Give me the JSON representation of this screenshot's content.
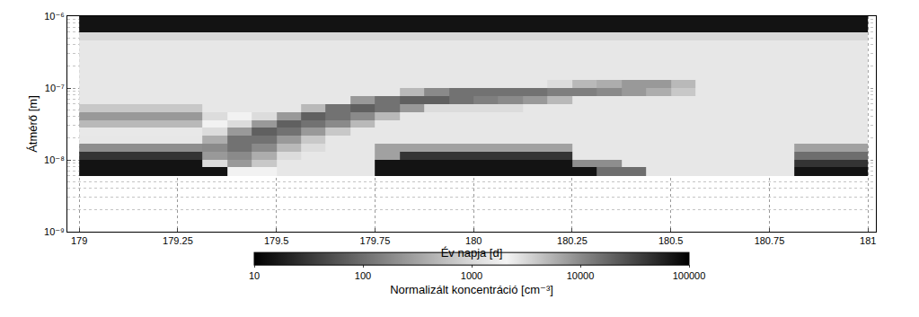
{
  "chart_data": {
    "type": "heatmap",
    "x_label": "Év napja [d]",
    "y_label": "Átmérő [m]",
    "log": "y",
    "grid": true,
    "xlim": [
      178.97,
      181.02
    ],
    "xticks": [
      179,
      179.25,
      179.5,
      179.75,
      180,
      180.25,
      180.5,
      180.75,
      181
    ],
    "ylim": [
      1e-09,
      1e-06
    ],
    "yticks": [
      {
        "value": 1e-09,
        "label": "10⁻⁹"
      },
      {
        "value": 1e-08,
        "label": "10⁻⁸"
      },
      {
        "value": 1e-07,
        "label": "10⁻⁷"
      },
      {
        "value": 1e-06,
        "label": "10⁻⁶"
      }
    ],
    "x": [
      179,
      179.0625,
      179.125,
      179.1875,
      179.25,
      179.3125,
      179.375,
      179.4375,
      179.5,
      179.5625,
      179.625,
      179.6875,
      179.75,
      179.8125,
      179.875,
      179.9375,
      180,
      180.0625,
      180.125,
      180.1875,
      180.25,
      180.3125,
      180.375,
      180.4375,
      180.5,
      180.5625,
      180.625,
      180.6875,
      180.75,
      180.8125,
      180.875,
      180.9375,
      181
    ],
    "y": [
      6e-09,
      8e-09,
      1e-08,
      1.3e-08,
      1.7e-08,
      2.2e-08,
      2.8e-08,
      3.6e-08,
      4.6e-08,
      6e-08,
      7.7e-08,
      1e-07,
      1.3e-07,
      1.7e-07,
      2.2e-07,
      2.8e-07,
      3.6e-07,
      4.6e-07,
      6e-07,
      1e-06
    ],
    "cells": [
      [
        15,
        15,
        15,
        15,
        15,
        15,
        2000,
        2000,
        1500,
        1500,
        1500,
        1500,
        15,
        15,
        15,
        15,
        15,
        15,
        15,
        15,
        15,
        100,
        100,
        1500,
        1500,
        1500,
        1500,
        1500,
        1500,
        15,
        15,
        15
      ],
      [
        15,
        15,
        15,
        15,
        15,
        3000,
        8000,
        4000,
        1500,
        1500,
        1500,
        1500,
        15,
        15,
        15,
        15,
        15,
        15,
        15,
        15,
        200,
        200,
        1500,
        1500,
        1500,
        1500,
        1500,
        1500,
        1500,
        30,
        30,
        30
      ],
      [
        30,
        30,
        30,
        30,
        30,
        8000,
        10000,
        6000,
        3000,
        1500,
        1500,
        1500,
        300,
        30,
        30,
        30,
        30,
        30,
        30,
        30,
        1500,
        1500,
        1500,
        1500,
        1500,
        1500,
        1500,
        1500,
        1500,
        100,
        100,
        100
      ],
      [
        200,
        200,
        200,
        200,
        200,
        10000,
        15000,
        10000,
        5000,
        3000,
        1500,
        1500,
        300,
        300,
        300,
        300,
        300,
        300,
        300,
        300,
        1500,
        1500,
        1500,
        1500,
        1500,
        1500,
        1500,
        1500,
        1500,
        300,
        300,
        300
      ],
      [
        1500,
        1500,
        1500,
        1500,
        1500,
        6000,
        15000,
        15000,
        8000,
        4000,
        1500,
        1500,
        1500,
        1500,
        1500,
        1500,
        1500,
        1500,
        1500,
        1500,
        1500,
        1500,
        1500,
        1500,
        1500,
        1500,
        1500,
        1500,
        1500,
        1500,
        1500,
        1500
      ],
      [
        2500,
        2500,
        2500,
        2500,
        2500,
        3000,
        8000,
        20000,
        15000,
        8000,
        4000,
        1500,
        1500,
        1500,
        1500,
        1500,
        1500,
        1500,
        1500,
        1500,
        1500,
        1500,
        1500,
        1500,
        1500,
        1500,
        1500,
        1500,
        1500,
        1500,
        1500,
        1500
      ],
      [
        5000,
        5000,
        5000,
        5000,
        5000,
        2000,
        3000,
        8000,
        20000,
        15000,
        10000,
        5000,
        1500,
        1500,
        1500,
        1500,
        1500,
        1500,
        1500,
        1500,
        1500,
        1500,
        1500,
        1500,
        1500,
        1500,
        1500,
        1500,
        1500,
        1500,
        1500,
        1500
      ],
      [
        8000,
        8000,
        8000,
        8000,
        8000,
        3000,
        2000,
        3000,
        8000,
        20000,
        15000,
        10000,
        5000,
        1500,
        1500,
        1500,
        1500,
        1500,
        1500,
        1500,
        1500,
        1500,
        1500,
        1500,
        1500,
        1500,
        1500,
        1500,
        1500,
        1500,
        1500,
        1500
      ],
      [
        4000,
        4000,
        4000,
        4000,
        4000,
        1500,
        1500,
        1500,
        1500,
        5000,
        15000,
        20000,
        15000,
        8000,
        3000,
        3000,
        3000,
        3000,
        1500,
        1500,
        1500,
        1500,
        1500,
        1500,
        1500,
        1500,
        1500,
        1500,
        1500,
        1500,
        1500,
        1500
      ],
      [
        1500,
        1500,
        1500,
        1500,
        1500,
        1500,
        1500,
        1500,
        1500,
        1500,
        1500,
        8000,
        15000,
        20000,
        20000,
        15000,
        12000,
        10000,
        8000,
        5000,
        1500,
        1500,
        1500,
        1500,
        1500,
        1500,
        1500,
        1500,
        1500,
        1500,
        1500,
        1500
      ],
      [
        1500,
        1500,
        1500,
        1500,
        1500,
        1500,
        1500,
        1500,
        1500,
        1500,
        1500,
        1500,
        1500,
        5000,
        10000,
        15000,
        15000,
        15000,
        15000,
        12000,
        12000,
        10000,
        8000,
        6000,
        4000,
        1500,
        1500,
        1500,
        1500,
        1500,
        1500,
        1500
      ],
      [
        1500,
        1500,
        1500,
        1500,
        1500,
        1500,
        1500,
        1500,
        1500,
        1500,
        1500,
        1500,
        1500,
        1500,
        1500,
        1500,
        1500,
        1500,
        1500,
        3000,
        5000,
        6000,
        8000,
        8000,
        5000,
        1500,
        1500,
        1500,
        1500,
        1500,
        1500,
        1500
      ],
      [
        1500,
        1500,
        1500,
        1500,
        1500,
        1500,
        1500,
        1500,
        1500,
        1500,
        1500,
        1500,
        1500,
        1500,
        1500,
        1500,
        1500,
        1500,
        1500,
        1500,
        1500,
        1500,
        1500,
        1500,
        1500,
        1500,
        1500,
        1500,
        1500,
        1500,
        1500,
        1500
      ],
      [
        1500,
        1500,
        1500,
        1500,
        1500,
        1500,
        1500,
        1500,
        1500,
        1500,
        1500,
        1500,
        1500,
        1500,
        1500,
        1500,
        1500,
        1500,
        1500,
        1500,
        1500,
        1500,
        1500,
        1500,
        1500,
        1500,
        1500,
        1500,
        1500,
        1500,
        1500,
        1500
      ],
      [
        1500,
        1500,
        1500,
        1500,
        1500,
        1500,
        1500,
        1500,
        1500,
        1500,
        1500,
        1500,
        1500,
        1500,
        1500,
        1500,
        1500,
        1500,
        1500,
        1500,
        1500,
        1500,
        1500,
        1500,
        1500,
        1500,
        1500,
        1500,
        1500,
        1500,
        1500,
        1500
      ],
      [
        1500,
        1500,
        1500,
        1500,
        1500,
        1500,
        1500,
        1500,
        1500,
        1500,
        1500,
        1500,
        1500,
        1500,
        1500,
        1500,
        1500,
        1500,
        1500,
        1500,
        1500,
        1500,
        1500,
        1500,
        1500,
        1500,
        1500,
        1500,
        1500,
        1500,
        1500,
        1500
      ],
      [
        1500,
        1500,
        1500,
        1500,
        1500,
        1500,
        1500,
        1500,
        1500,
        1500,
        1500,
        1500,
        1500,
        1500,
        1500,
        1500,
        1500,
        1500,
        1500,
        1500,
        1500,
        1500,
        1500,
        1500,
        1500,
        1500,
        1500,
        1500,
        1500,
        1500,
        1500,
        1500
      ],
      [
        1000,
        1000,
        1000,
        1000,
        1000,
        1000,
        1000,
        1000,
        1000,
        1000,
        1000,
        1000,
        1000,
        1000,
        1000,
        1000,
        1000,
        1000,
        1000,
        1000,
        1000,
        1000,
        1000,
        1000,
        1000,
        1000,
        1000,
        1000,
        1000,
        1000,
        1000,
        1000
      ],
      [
        15,
        15,
        15,
        15,
        15,
        15,
        15,
        15,
        15,
        15,
        15,
        15,
        15,
        15,
        15,
        15,
        15,
        15,
        15,
        15,
        15,
        15,
        15,
        15,
        15,
        15,
        15,
        15,
        15,
        15,
        15,
        15
      ]
    ],
    "colorbar": {
      "label": "Normalizált koncentráció [cm⁻³]",
      "lim": [
        10,
        100000
      ],
      "ticks": [
        10,
        100,
        1000,
        10000,
        100000
      ]
    }
  }
}
